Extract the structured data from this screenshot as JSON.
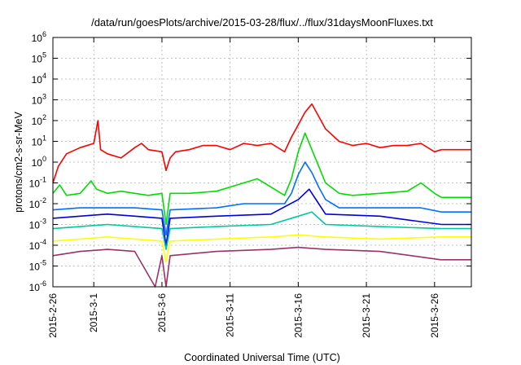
{
  "chart_data": {
    "type": "line",
    "title": "/data/run/goesPlots/archive/2015-03-28/flux/../flux/31daysMoonFluxes.txt",
    "xlabel": "Coordinated Universal Time (UTC)",
    "ylabel": "protons/cm2-s-sr-MeV",
    "y_scale": "log",
    "ylim_exp": [
      -6,
      6
    ],
    "xlim_days_from_2015_02_26": [
      0,
      30.7
    ],
    "grid": true,
    "x_ticks": [
      {
        "label": "2015-2-26",
        "day": 0
      },
      {
        "label": "2015-3-1",
        "day": 3
      },
      {
        "label": "2015-3-6",
        "day": 8
      },
      {
        "label": "2015-3-11",
        "day": 13
      },
      {
        "label": "2015-3-16",
        "day": 18
      },
      {
        "label": "2015-3-21",
        "day": 23
      },
      {
        "label": "2015-3-26",
        "day": 28
      }
    ],
    "y_ticks": [
      {
        "base": "10",
        "exp": "-6",
        "value": -6
      },
      {
        "base": "10",
        "exp": "-5",
        "value": -5
      },
      {
        "base": "10",
        "exp": "-4",
        "value": -4
      },
      {
        "base": "10",
        "exp": "-3",
        "value": -3
      },
      {
        "base": "10",
        "exp": "-2",
        "value": -2
      },
      {
        "base": "10",
        "exp": "-1",
        "value": -1
      },
      {
        "base": "10",
        "exp": "0",
        "value": 0
      },
      {
        "base": "10",
        "exp": "1",
        "value": 1
      },
      {
        "base": "10",
        "exp": "2",
        "value": 2
      },
      {
        "base": "10",
        "exp": "3",
        "value": 3
      },
      {
        "base": "10",
        "exp": "4",
        "value": 4
      },
      {
        "base": "10",
        "exp": "5",
        "value": 5
      },
      {
        "base": "10",
        "exp": "6",
        "value": 6
      }
    ],
    "series": [
      {
        "color": "#ff0000",
        "last_day": 28.5,
        "last_log_flux": 0.6,
        "points": [
          [
            0,
            -1
          ],
          [
            0.4,
            -0.2
          ],
          [
            1,
            0.4
          ],
          [
            2,
            0.7
          ],
          [
            3,
            0.9
          ],
          [
            3.3,
            2.0
          ],
          [
            3.5,
            0.6
          ],
          [
            4,
            0.4
          ],
          [
            5,
            0.2
          ],
          [
            6,
            0.7
          ],
          [
            6.5,
            0.9
          ],
          [
            7,
            0.6
          ],
          [
            8,
            0.5
          ],
          [
            8.3,
            -0.4
          ],
          [
            8.6,
            0.2
          ],
          [
            9,
            0.5
          ],
          [
            10,
            0.6
          ],
          [
            11,
            0.8
          ],
          [
            12,
            0.8
          ],
          [
            13,
            0.6
          ],
          [
            14,
            0.9
          ],
          [
            15,
            0.8
          ],
          [
            16,
            0.9
          ],
          [
            17,
            0.5
          ],
          [
            17.5,
            1.2
          ],
          [
            18,
            1.8
          ],
          [
            18.5,
            2.4
          ],
          [
            19,
            2.8
          ],
          [
            19.5,
            2.2
          ],
          [
            20,
            1.6
          ],
          [
            21,
            1.0
          ],
          [
            22,
            0.8
          ],
          [
            23,
            0.9
          ],
          [
            24,
            0.7
          ],
          [
            25,
            0.8
          ],
          [
            26,
            0.8
          ],
          [
            27,
            0.9
          ],
          [
            28,
            0.5
          ],
          [
            28.5,
            0.6
          ]
        ]
      },
      {
        "color": "#00dd00",
        "last_day": 28.5,
        "last_log_flux": -1.7,
        "points": [
          [
            0,
            -1.5
          ],
          [
            0.5,
            -1.1
          ],
          [
            1,
            -1.6
          ],
          [
            2,
            -1.5
          ],
          [
            2.8,
            -0.9
          ],
          [
            3.2,
            -1.3
          ],
          [
            4,
            -1.5
          ],
          [
            5,
            -1.4
          ],
          [
            6,
            -1.5
          ],
          [
            7,
            -1.6
          ],
          [
            8,
            -1.5
          ],
          [
            8.3,
            -3.0
          ],
          [
            8.6,
            -1.5
          ],
          [
            10,
            -1.5
          ],
          [
            12,
            -1.4
          ],
          [
            14,
            -1.0
          ],
          [
            15,
            -0.8
          ],
          [
            16,
            -1.2
          ],
          [
            17,
            -1.6
          ],
          [
            17.5,
            -0.8
          ],
          [
            18,
            0.5
          ],
          [
            18.5,
            1.4
          ],
          [
            19,
            0.6
          ],
          [
            19.5,
            -0.2
          ],
          [
            20,
            -1.0
          ],
          [
            21,
            -1.5
          ],
          [
            22,
            -1.6
          ],
          [
            24,
            -1.5
          ],
          [
            26,
            -1.4
          ],
          [
            27,
            -1.0
          ],
          [
            28,
            -1.5
          ],
          [
            28.5,
            -1.7
          ]
        ]
      },
      {
        "color": "#0070ff",
        "last_day": 28.5,
        "last_log_flux": -2.4,
        "points": [
          [
            0,
            -2.3
          ],
          [
            2,
            -2.2
          ],
          [
            4,
            -2.2
          ],
          [
            6,
            -2.2
          ],
          [
            8,
            -2.3
          ],
          [
            8.3,
            -3.5
          ],
          [
            8.6,
            -2.3
          ],
          [
            12,
            -2.2
          ],
          [
            14,
            -2.0
          ],
          [
            17,
            -2.0
          ],
          [
            17.5,
            -1.5
          ],
          [
            18,
            -0.6
          ],
          [
            18.5,
            0.0
          ],
          [
            19,
            -0.5
          ],
          [
            19.5,
            -1.2
          ],
          [
            20,
            -1.8
          ],
          [
            21,
            -2.2
          ],
          [
            24,
            -2.2
          ],
          [
            27,
            -2.2
          ],
          [
            28.5,
            -2.4
          ]
        ]
      },
      {
        "color": "#0000dd",
        "last_day": 28.5,
        "last_log_flux": -3.0,
        "points": [
          [
            0,
            -2.7
          ],
          [
            2,
            -2.6
          ],
          [
            4,
            -2.5
          ],
          [
            6,
            -2.6
          ],
          [
            8,
            -2.7
          ],
          [
            8.3,
            -4.0
          ],
          [
            8.6,
            -2.7
          ],
          [
            12,
            -2.6
          ],
          [
            16,
            -2.5
          ],
          [
            18,
            -1.8
          ],
          [
            18.8,
            -1.3
          ],
          [
            19.5,
            -2.0
          ],
          [
            20,
            -2.5
          ],
          [
            24,
            -2.6
          ],
          [
            28.5,
            -3.0
          ]
        ]
      },
      {
        "color": "#00c8a0",
        "last_day": 28.5,
        "last_log_flux": -3.2,
        "points": [
          [
            0,
            -3.2
          ],
          [
            2,
            -3.1
          ],
          [
            4,
            -3.0
          ],
          [
            6,
            -3.1
          ],
          [
            8,
            -3.2
          ],
          [
            8.3,
            -4.2
          ],
          [
            8.6,
            -3.2
          ],
          [
            12,
            -3.1
          ],
          [
            16,
            -3.0
          ],
          [
            18,
            -2.6
          ],
          [
            19,
            -2.4
          ],
          [
            20,
            -3.0
          ],
          [
            24,
            -3.1
          ],
          [
            28.5,
            -3.2
          ]
        ]
      },
      {
        "color": "#ffff00",
        "last_day": 28.5,
        "last_log_flux": -3.6,
        "points": [
          [
            0,
            -3.8
          ],
          [
            2,
            -3.7
          ],
          [
            4,
            -3.6
          ],
          [
            6,
            -3.7
          ],
          [
            8,
            -3.8
          ],
          [
            8.3,
            -4.8
          ],
          [
            8.6,
            -3.8
          ],
          [
            12,
            -3.7
          ],
          [
            16,
            -3.6
          ],
          [
            18,
            -3.5
          ],
          [
            20,
            -3.6
          ],
          [
            24,
            -3.7
          ],
          [
            28.5,
            -3.6
          ]
        ]
      },
      {
        "color": "#993366",
        "last_day": 28.5,
        "last_log_flux": -4.7,
        "points": [
          [
            0,
            -4.5
          ],
          [
            2,
            -4.3
          ],
          [
            4,
            -4.2
          ],
          [
            6,
            -4.3
          ],
          [
            7.5,
            -6
          ],
          [
            8,
            -4.5
          ],
          [
            8.3,
            -6
          ],
          [
            8.6,
            -4.5
          ],
          [
            12,
            -4.3
          ],
          [
            16,
            -4.2
          ],
          [
            18,
            -4.1
          ],
          [
            20,
            -4.2
          ],
          [
            24,
            -4.3
          ],
          [
            28.5,
            -4.7
          ]
        ]
      }
    ]
  }
}
